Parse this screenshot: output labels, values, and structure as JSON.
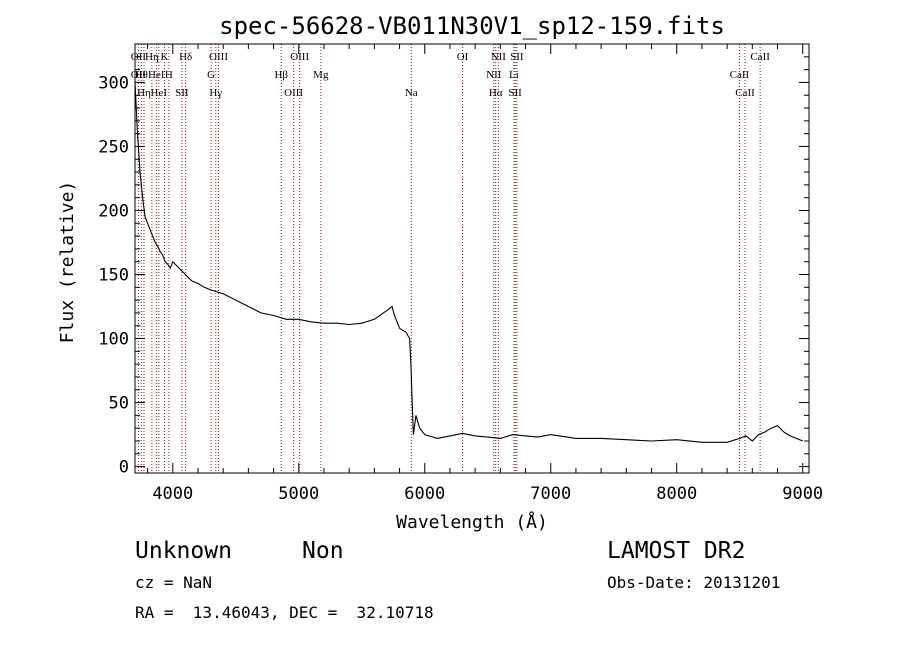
{
  "chart_data": {
    "type": "line",
    "title": "spec-56628-VB011N30V1_sp12-159.fits",
    "xlabel": "Wavelength (Å)",
    "ylabel": "Flux (relative)",
    "xlim": [
      3700,
      9050
    ],
    "ylim": [
      -5,
      330
    ],
    "x_ticks": [
      4000,
      5000,
      6000,
      7000,
      8000,
      9000
    ],
    "y_ticks": [
      0,
      50,
      100,
      150,
      200,
      250,
      300
    ],
    "grid": false,
    "line_color": "#000000",
    "marker_color": "#8b1a1a",
    "series": [
      {
        "x": [
          3700,
          3720,
          3740,
          3760,
          3780,
          3800,
          3820,
          3840,
          3860,
          3880,
          3900,
          3920,
          3940,
          3960,
          3980,
          4000,
          4050,
          4100,
          4150,
          4200,
          4250,
          4300,
          4400,
          4500,
          4600,
          4700,
          4800,
          4900,
          5000,
          5100,
          5200,
          5300,
          5400,
          5500,
          5600,
          5700,
          5740,
          5760,
          5800,
          5850,
          5880,
          5890,
          5900,
          5910,
          5930,
          5960,
          6000,
          6100,
          6200,
          6300,
          6400,
          6500,
          6600,
          6700,
          6800,
          6900,
          7000,
          7200,
          7400,
          7600,
          7800,
          8000,
          8200,
          8400,
          8500,
          8550,
          8600,
          8650,
          8700,
          8750,
          8800,
          8850,
          8900,
          8950,
          9000
        ],
        "y": [
          300,
          260,
          230,
          210,
          195,
          190,
          185,
          180,
          175,
          172,
          168,
          165,
          160,
          158,
          155,
          160,
          155,
          150,
          145,
          143,
          140,
          138,
          135,
          130,
          125,
          120,
          118,
          115,
          115,
          113,
          112,
          112,
          111,
          112,
          115,
          122,
          125,
          118,
          108,
          105,
          100,
          80,
          50,
          25,
          40,
          30,
          25,
          22,
          24,
          26,
          24,
          23,
          22,
          25,
          24,
          23,
          25,
          22,
          22,
          21,
          20,
          21,
          19,
          19,
          22,
          24,
          20,
          25,
          27,
          30,
          32,
          27,
          24,
          22,
          20
        ]
      }
    ],
    "line_markers": [
      {
        "x": 3727,
        "labels": [
          "OII",
          "OII"
        ]
      },
      {
        "x": 3750,
        "labels": [
          "Hθ"
        ]
      },
      {
        "x": 3771,
        "labels": [
          "Hη"
        ]
      },
      {
        "x": 3834,
        "labels": [
          "Hη"
        ]
      },
      {
        "x": 3869,
        "labels": [
          "HeI"
        ]
      },
      {
        "x": 3889,
        "labels": [
          "HeI"
        ]
      },
      {
        "x": 3934,
        "labels": [
          "K"
        ]
      },
      {
        "x": 3969,
        "labels": [
          "H"
        ]
      },
      {
        "x": 4072,
        "labels": [
          "SII"
        ]
      },
      {
        "x": 4102,
        "labels": [
          "Hδ"
        ]
      },
      {
        "x": 4304,
        "labels": [
          "G"
        ]
      },
      {
        "x": 4341,
        "labels": [
          "Hγ"
        ]
      },
      {
        "x": 4363,
        "labels": [
          "OIII"
        ]
      },
      {
        "x": 4861,
        "labels": [
          "Hβ"
        ]
      },
      {
        "x": 4959,
        "labels": [
          "OIII"
        ]
      },
      {
        "x": 5007,
        "labels": [
          "OIII"
        ]
      },
      {
        "x": 5175,
        "labels": [
          "Mg"
        ]
      },
      {
        "x": 5893,
        "labels": [
          "Na"
        ]
      },
      {
        "x": 6300,
        "labels": [
          "OI"
        ]
      },
      {
        "x": 6548,
        "labels": [
          "NII"
        ]
      },
      {
        "x": 6563,
        "labels": [
          "Hα"
        ]
      },
      {
        "x": 6584,
        "labels": [
          "NII"
        ]
      },
      {
        "x": 6708,
        "labels": [
          "Li"
        ]
      },
      {
        "x": 6717,
        "labels": [
          "SII"
        ]
      },
      {
        "x": 6731,
        "labels": [
          "SII"
        ]
      },
      {
        "x": 8498,
        "labels": [
          "CaII"
        ]
      },
      {
        "x": 8542,
        "labels": [
          "CaII"
        ]
      },
      {
        "x": 8662,
        "labels": [
          "CaII"
        ]
      }
    ]
  },
  "info": {
    "class_label": "Unknown",
    "subclass_label": "Non",
    "survey_label": "LAMOST DR2",
    "redshift_label": "cz = NaN",
    "obs_date_label": "Obs-Date: 20131201",
    "coords_label": "RA =  13.46043, DEC =  32.10718"
  }
}
